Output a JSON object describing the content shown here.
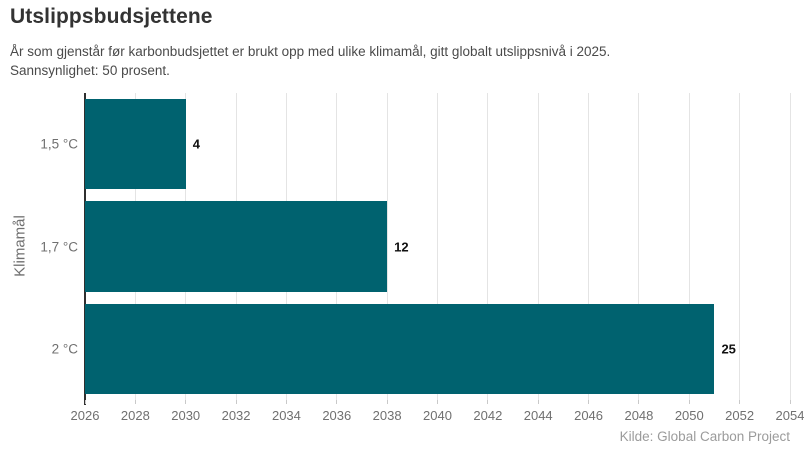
{
  "header": {
    "title": "Utslippsbudsjettene",
    "subtitle_lines": [
      "År som gjenstår før karbonbudsjettet er brukt opp med ulike klimamål, gitt globalt utslippsnivå i 2025.",
      "Sannsynlighet: 50 prosent."
    ]
  },
  "chart_data": {
    "type": "bar",
    "orientation": "horizontal",
    "title": "Utslippsbudsjettene",
    "subtitle": "År som gjenstår før karbonbudsjettet er brukt opp med ulike klimamål, gitt globalt utslippsnivå i 2025. Sannsynlighet: 50 prosent.",
    "categories": [
      "1,5 °C",
      "1,7 °C",
      "2 °C"
    ],
    "values": [
      4,
      12,
      25
    ],
    "value_labels": [
      "4",
      "12",
      "25"
    ],
    "bars_end_year": [
      2030,
      2038,
      2051
    ],
    "ylabel": "Klimamål",
    "xlabel": "",
    "xlim": [
      2026,
      2054
    ],
    "x_ticks": [
      2026,
      2028,
      2030,
      2032,
      2034,
      2036,
      2038,
      2040,
      2042,
      2044,
      2046,
      2048,
      2050,
      2052,
      2054
    ],
    "grid": "vertical",
    "legend": "none",
    "source": "Kilde: Global Carbon Project"
  },
  "colors": {
    "bar": "#00626F",
    "axis": "#2F2F2F",
    "grid": "#E4E4E4",
    "title": "#333333",
    "subtitle": "#4A4A4A",
    "muted": "#707070",
    "source": "#9B9B9B"
  }
}
